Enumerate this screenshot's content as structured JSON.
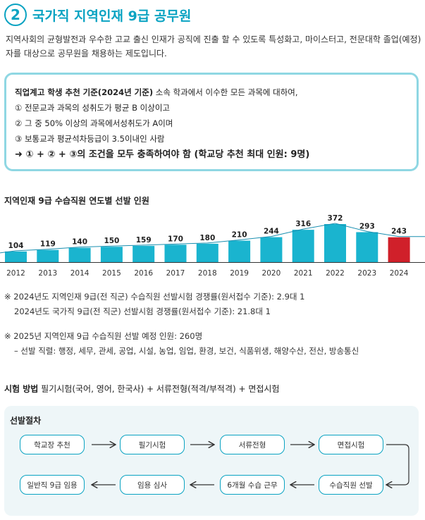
{
  "header": {
    "number": "2",
    "title": "국가직 지역인재 9급 공무원"
  },
  "intro": "지역사회의 균형발전과 우수한 고교 출신 인재가 공직에 진출 할 수 있도록 특성화고, 마이스터고, 전문대학 졸업(예정)자를 대상으로 공무원을 채용하는 제도입니다.",
  "criteria": {
    "heading": "직업계고 학생 추천 기준(2024년 기준)",
    "heading_rest": " 소속 학과에서 이수한 모든 과목에 대하여,",
    "items": [
      "① 전문교과 과목의 성취도가 평균 B 이상이고",
      "② 그 중 50% 이상의 과목에서성취도가 A이며",
      "③ 보통교과 평균석차등급이 3.5이내인 사람"
    ],
    "final": "➜ ① + ② + ③의 조건을 모두 충족하여야 함 (학교당 추천 최대 인원: 9명)"
  },
  "chart_title": "지역인재 9급 수습직원 연도별 선발 인원",
  "chart_data": {
    "type": "bar",
    "categories": [
      "2012",
      "2013",
      "2014",
      "2015",
      "2016",
      "2017",
      "2018",
      "2019",
      "2020",
      "2021",
      "2022",
      "2023",
      "2024"
    ],
    "values": [
      104,
      119,
      140,
      150,
      159,
      170,
      180,
      210,
      244,
      316,
      372,
      293,
      243
    ],
    "title": "지역인재 9급 수습직원 연도별 선발 인원",
    "xlabel": "",
    "ylabel": "",
    "ylim": [
      0,
      400
    ],
    "grid": false,
    "colors": {
      "bar": "#1ab4cf",
      "highlight": "#d0202a",
      "trend": "#1a8fb0"
    },
    "highlight_category": "2024"
  },
  "notes": [
    "※ 2024년도 지역인재 9급(전 직군) 수습직원 선발시험 경쟁률(원서접수 기준): 2.9대 1",
    "2024년도 국가직 9급(전 직군) 선발시험 경쟁률(원서접수 기준): 21.8대 1",
    "※ 2025년 지역인재 9급 수습직원 선발 예정 인원: 260명",
    "– 선발 직렬: 행정, 세무, 관세, 공업, 시설, 농업, 임업, 환경, 보건, 식품위생, 해양수산, 전산, 방송통신"
  ],
  "exam": {
    "label": "시험 방법",
    "text": " 필기시험(국어, 영어, 한국사) + 서류전형(적격/부적격) + 면접시험"
  },
  "procedure": {
    "title": "선발절차",
    "row1": [
      "학교장 추천",
      "필기시험",
      "서류전형",
      "면접시험"
    ],
    "row2": [
      "일반직 9급 임용",
      "임용 심사",
      "6개월 수습 근무",
      "수습직원 선발"
    ]
  }
}
